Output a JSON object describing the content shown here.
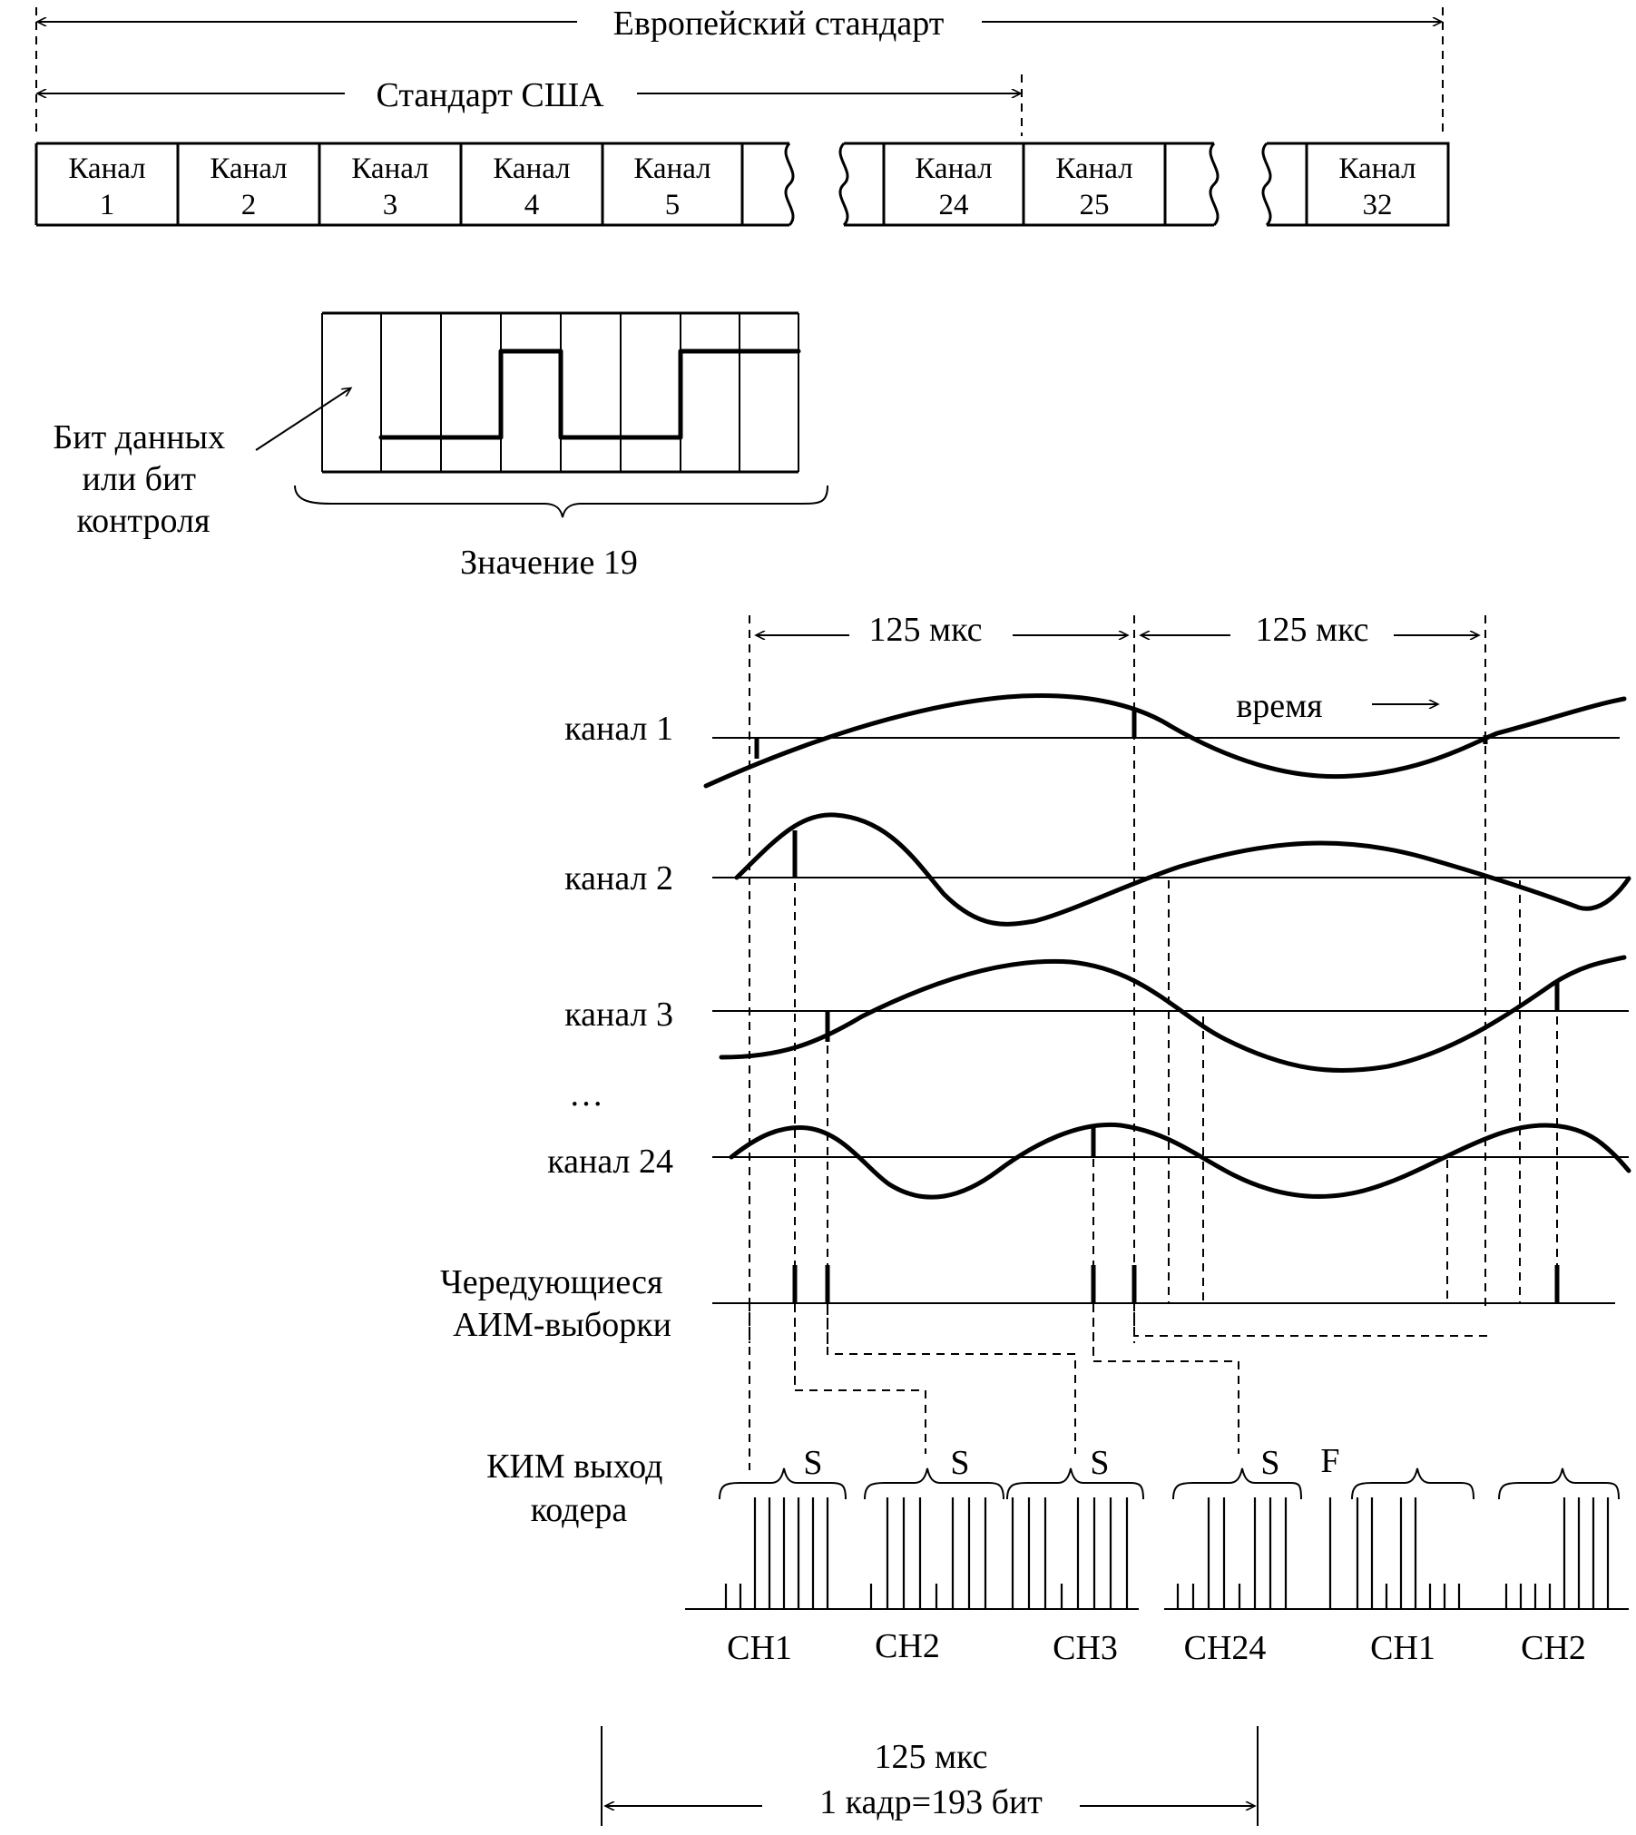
{
  "frame_standards": {
    "european": "Европейский стандарт",
    "usa": "Стандарт США"
  },
  "channels": [
    {
      "word": "Канал",
      "number": "1"
    },
    {
      "word": "Канал",
      "number": "2"
    },
    {
      "word": "Канал",
      "number": "3"
    },
    {
      "word": "Канал",
      "number": "4"
    },
    {
      "word": "Канал",
      "number": "5"
    },
    {
      "word": "Канал",
      "number": "24"
    },
    {
      "word": "Канал",
      "number": "25"
    },
    {
      "word": "Канал",
      "number": "32"
    }
  ],
  "bit_word": {
    "pointer_label": [
      "Бит данных",
      "или бит",
      "контроля"
    ],
    "value_label": "Значение 19"
  },
  "timing": {
    "interval_1": "125 мкс",
    "interval_2": "125 мкс",
    "time_label": "время"
  },
  "waveforms": {
    "labels": [
      "канал 1",
      "канал 2",
      "канал 3",
      "канал 24"
    ],
    "ellipsis": "…",
    "pam_label": [
      "Чередующиеся",
      "АИМ-выборки"
    ]
  },
  "pcm": {
    "label": [
      "КИМ выход",
      "кодера"
    ],
    "signal_marker": "S",
    "framing_marker": "F",
    "slots": [
      "CH1",
      "CH2",
      "CH3",
      "CH24",
      "CH1",
      "CH2"
    ]
  },
  "frame": {
    "duration": "125 мкс",
    "size": "1 кадр=193 бит"
  }
}
